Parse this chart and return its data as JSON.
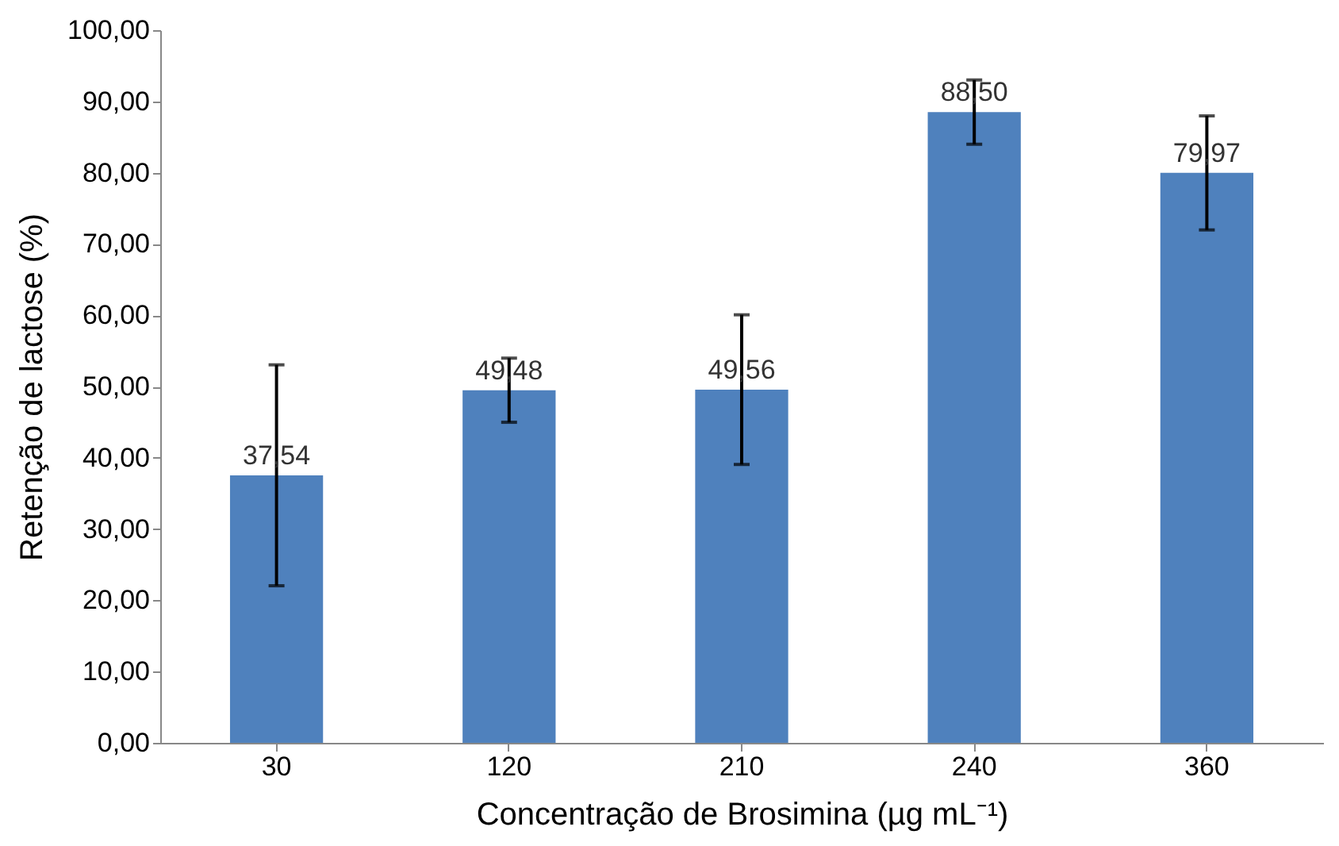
{
  "chart_data": {
    "type": "bar",
    "xlabel": "Concentração de Brosimina (µg mL⁻¹)",
    "ylabel": "Retenção de lactose (%)",
    "categories": [
      "30",
      "120",
      "210",
      "240",
      "360"
    ],
    "values": [
      37.54,
      49.48,
      49.56,
      88.5,
      79.97
    ],
    "errors": [
      15.5,
      4.5,
      10.5,
      4.5,
      8
    ],
    "value_labels": [
      "37,54",
      "49,48",
      "49,56",
      "88,50",
      "79,97"
    ],
    "color": "#4f81bd",
    "ylim": [
      0,
      100
    ],
    "yticks": [
      {
        "value": 0,
        "label": "0,00"
      },
      {
        "value": 10,
        "label": "10,00"
      },
      {
        "value": 20,
        "label": "20,00"
      },
      {
        "value": 30,
        "label": "30,00"
      },
      {
        "value": 40,
        "label": "40,00"
      },
      {
        "value": 50,
        "label": "50,00"
      },
      {
        "value": 60,
        "label": "60,00"
      },
      {
        "value": 70,
        "label": "70,00"
      },
      {
        "value": 80,
        "label": "80,00"
      },
      {
        "value": 90,
        "label": "90,00"
      },
      {
        "value": 100,
        "label": "100,00"
      }
    ],
    "grid": false
  }
}
